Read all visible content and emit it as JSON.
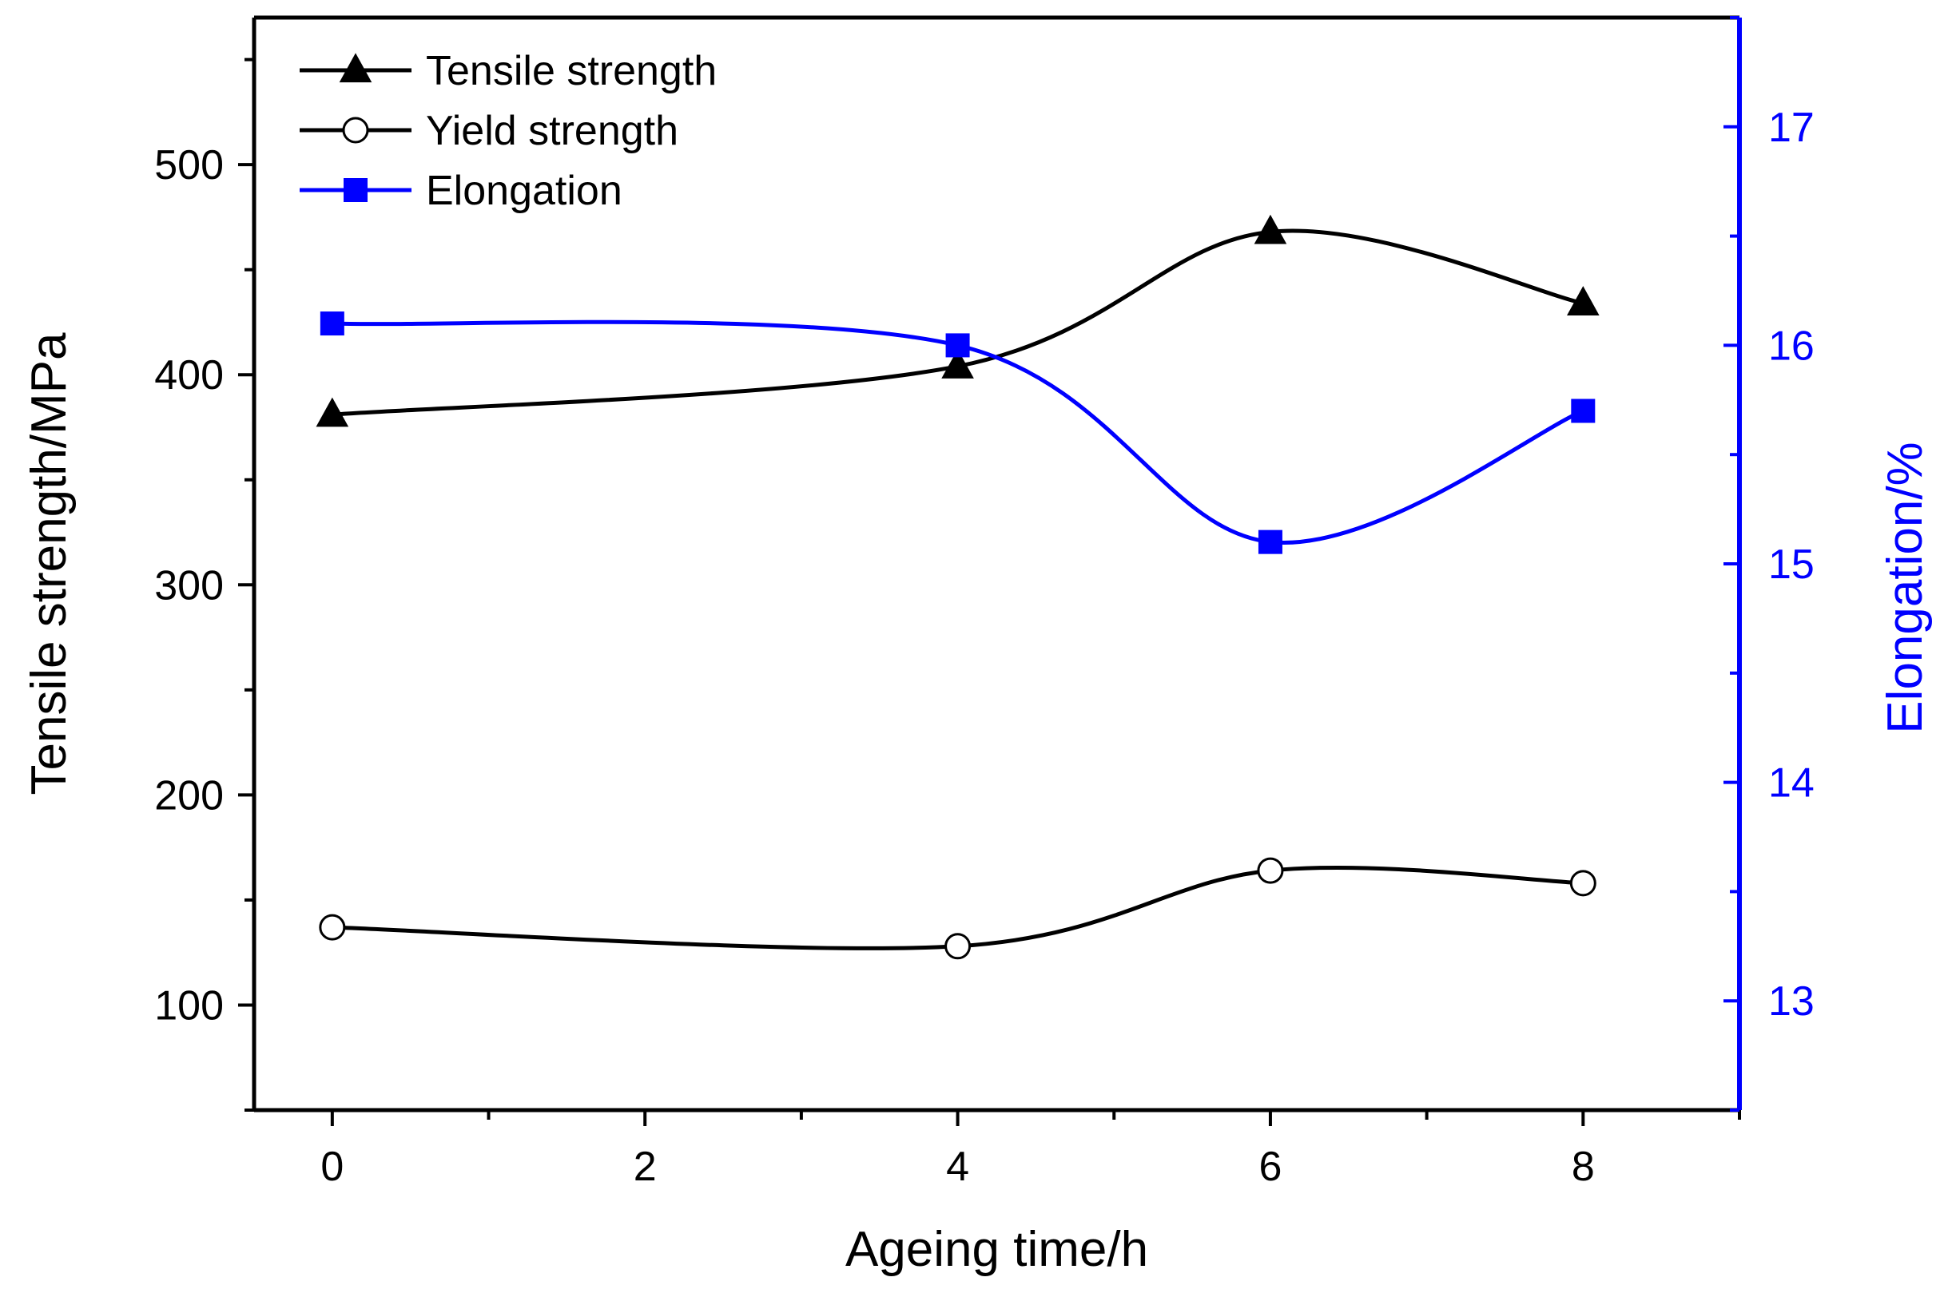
{
  "chart_data": {
    "type": "line",
    "x": [
      0,
      4,
      6,
      8
    ],
    "xlabel": "Ageing time/h",
    "xlim": [
      -0.5,
      9
    ],
    "xticks": [
      0,
      2,
      4,
      6,
      8
    ],
    "ylabel": "Tensile strength/MPa",
    "ylim": [
      50,
      570
    ],
    "yticks": [
      100,
      200,
      300,
      400,
      500
    ],
    "y2label": "Elongation/%",
    "y2lim": [
      12.5,
      17.5
    ],
    "y2ticks": [
      13,
      14,
      15,
      16,
      17
    ],
    "legend_position": "top-left",
    "smooth": true,
    "series": [
      {
        "name": "Tensile strength",
        "axis": "left",
        "marker": "triangle-filled",
        "color": "#000000",
        "values": [
          381,
          404,
          468,
          434
        ]
      },
      {
        "name": "Yield strength",
        "axis": "left",
        "marker": "circle-open",
        "color": "#000000",
        "values": [
          137,
          128,
          164,
          158
        ]
      },
      {
        "name": "Elongation",
        "axis": "right",
        "marker": "square-filled",
        "color": "#0000FF",
        "values": [
          16.1,
          16.0,
          15.1,
          15.7
        ]
      }
    ]
  }
}
